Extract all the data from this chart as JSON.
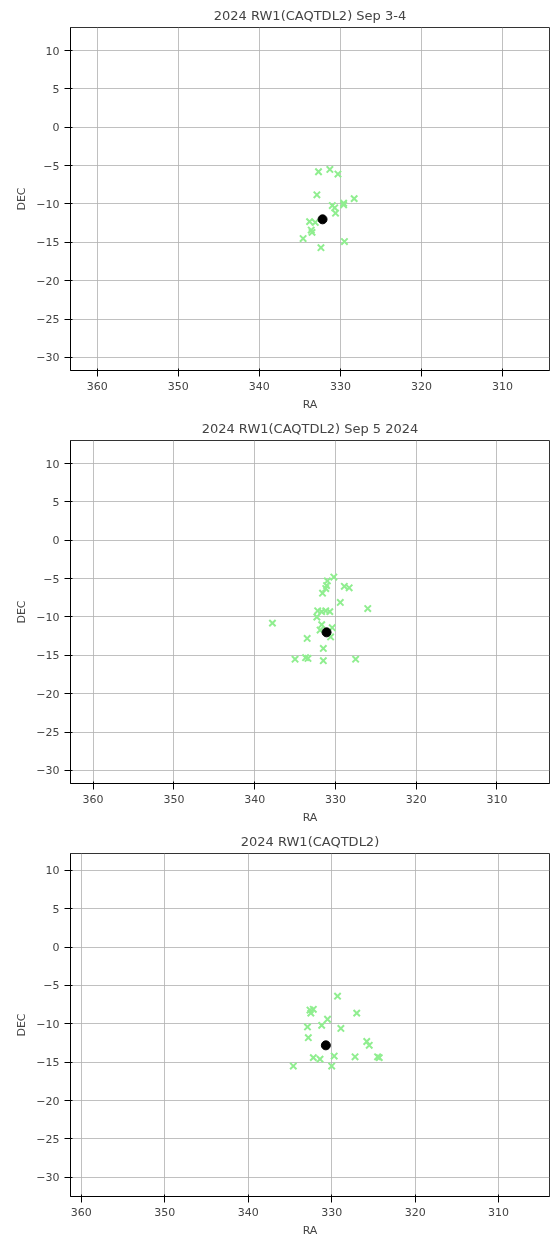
{
  "chart_data": [
    {
      "type": "scatter",
      "title": "2024 RW1(CAQTDL2) Sep 3-4",
      "xlabel": "RA",
      "ylabel": "DEC",
      "xlim": [
        363.3,
        304.2
      ],
      "ylim": [
        -31.7,
        13.0
      ],
      "xticks": [
        360,
        350,
        340,
        330,
        320,
        310
      ],
      "yticks": [
        10,
        5,
        0,
        -5,
        -10,
        -15,
        -20,
        -25,
        -30
      ],
      "grid": true,
      "series": [
        {
          "color": "#90ee90",
          "marker": "cross",
          "x": [
            332.7,
            331.3,
            330.3,
            332.9,
            328.3,
            331.0,
            329.6,
            330.7,
            330.6,
            329.6,
            333.8,
            333.1,
            333.6,
            333.5,
            334.6,
            332.4,
            329.5
          ],
          "values": [
            -5.8,
            -5.5,
            -6.1,
            -8.8,
            -9.3,
            -10.2,
            -9.9,
            -10.5,
            -11.2,
            -10.1,
            -12.3,
            -12.4,
            -13.4,
            -13.7,
            -14.5,
            -15.7,
            -14.9
          ]
        },
        {
          "color": "#000000",
          "marker": "circle",
          "x": [
            332.2
          ],
          "values": [
            -12.0
          ]
        }
      ]
    },
    {
      "type": "scatter",
      "title": "2024 RW1(CAQTDL2) Sep 5 2024",
      "xlabel": "RA",
      "ylabel": "DEC",
      "xlim": [
        362.8,
        303.5
      ],
      "ylim": [
        -31.7,
        13.0
      ],
      "xticks": [
        360,
        350,
        340,
        330,
        320,
        310
      ],
      "yticks": [
        10,
        5,
        0,
        -5,
        -10,
        -15,
        -20,
        -25,
        -30
      ],
      "grid": true,
      "series": [
        {
          "color": "#90ee90",
          "marker": "cross",
          "x": [
            330.2,
            331.0,
            331.1,
            331.2,
            331.6,
            328.9,
            328.3,
            329.4,
            326.0,
            332.2,
            331.7,
            331.2,
            330.7,
            332.3,
            331.7,
            331.9,
            330.4,
            330.6,
            337.8,
            333.5,
            331.5,
            335.0,
            333.7,
            333.4,
            331.5,
            327.5
          ],
          "values": [
            -4.8,
            -5.3,
            -5.9,
            -6.3,
            -6.9,
            -6.0,
            -6.2,
            -8.1,
            -8.9,
            -9.2,
            -9.3,
            -9.2,
            -9.3,
            -10.0,
            -11.0,
            -11.7,
            -11.4,
            -12.6,
            -10.8,
            -12.8,
            -14.1,
            -15.5,
            -15.3,
            -15.4,
            -15.7,
            -15.5
          ]
        },
        {
          "color": "#000000",
          "marker": "circle",
          "x": [
            331.1
          ],
          "values": [
            -12.0
          ]
        }
      ]
    },
    {
      "type": "scatter",
      "title": "2024 RW1(CAQTDL2)",
      "xlabel": "RA",
      "ylabel": "DEC",
      "xlim": [
        361.3,
        303.9
      ],
      "ylim": [
        -32.5,
        12.2
      ],
      "xticks": [
        360,
        350,
        340,
        330,
        320,
        310
      ],
      "yticks": [
        10,
        5,
        0,
        -5,
        -10,
        -15,
        -20,
        -25,
        -30
      ],
      "grid": true,
      "series": [
        {
          "color": "#90ee90",
          "marker": "cross",
          "x": [
            329.3,
            332.6,
            332.2,
            332.5,
            327.0,
            330.5,
            331.2,
            328.9,
            332.9,
            332.8,
            325.8,
            325.5,
            332.2,
            331.4,
            329.7,
            327.2,
            324.5,
            324.3,
            334.6,
            330.0
          ],
          "values": [
            -6.4,
            -8.2,
            -8.1,
            -8.6,
            -8.6,
            -9.4,
            -10.2,
            -10.6,
            -10.4,
            -11.8,
            -12.3,
            -12.8,
            -14.4,
            -14.6,
            -14.2,
            -14.3,
            -14.3,
            -14.4,
            -15.5,
            -15.5
          ]
        },
        {
          "color": "#000000",
          "marker": "circle",
          "x": [
            330.7
          ],
          "values": [
            -12.8
          ]
        }
      ]
    }
  ]
}
